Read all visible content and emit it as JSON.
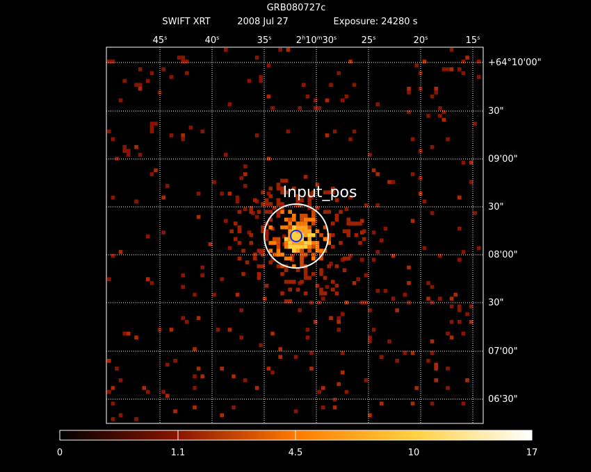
{
  "header": {
    "title": "GRB080727c",
    "instrument": "SWIFT XRT",
    "date": "2008 Jul 27",
    "exposure": "Exposure: 24280 s"
  },
  "top_ticks": [
    [
      "45",
      "s"
    ],
    [
      "40",
      "s"
    ],
    [
      "35",
      "s"
    ],
    [
      "2",
      "h",
      "10",
      "m",
      "30",
      "s"
    ],
    [
      "25",
      "s"
    ],
    [
      "20",
      "s"
    ],
    [
      "15",
      "s"
    ]
  ],
  "right_ticks": [
    "+64°10'00\"",
    "30\"",
    "09'00\"",
    "30\"",
    "08'00\"",
    "30\"",
    "07'00\"",
    "06'30\""
  ],
  "marker_label": "Input_pos",
  "colorbar_labels": [
    "0",
    "1.1",
    "4.5",
    "10",
    "17"
  ]
}
